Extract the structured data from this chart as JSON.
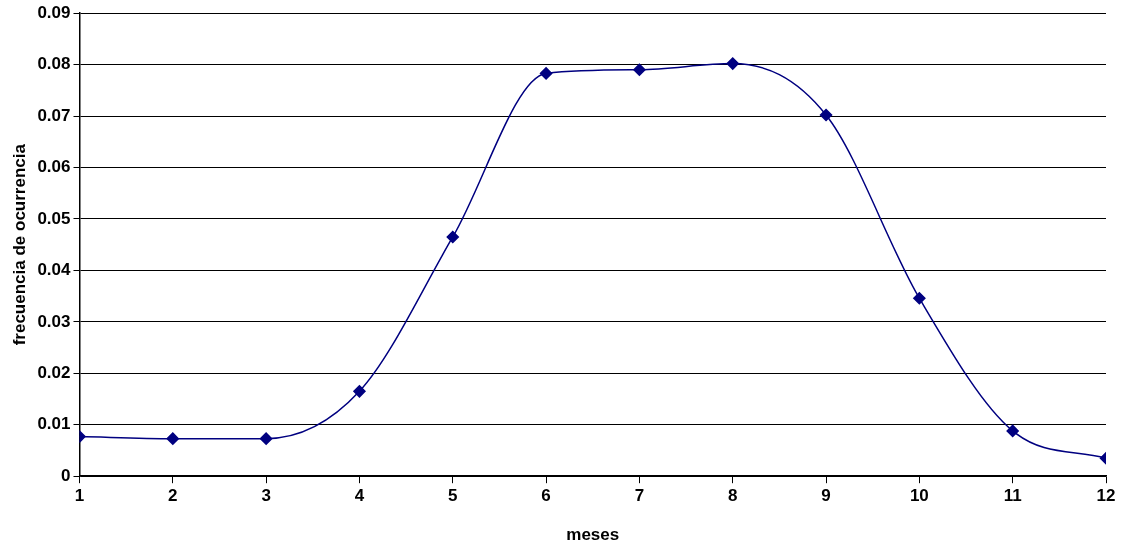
{
  "chart_data": {
    "type": "line",
    "xlabel": "meses",
    "ylabel": "frecuencia de ocurrencia",
    "x": [
      1,
      2,
      3,
      4,
      5,
      6,
      7,
      8,
      9,
      10,
      11,
      12
    ],
    "series": [
      {
        "color": "#000080",
        "values": [
          0.0077,
          0.0073,
          0.0073,
          0.0165,
          0.0465,
          0.0783,
          0.079,
          0.0802,
          0.0702,
          0.0346,
          0.0088,
          0.0035
        ]
      }
    ],
    "xlim": [
      1,
      12
    ],
    "xticks": [
      1,
      2,
      3,
      4,
      5,
      6,
      7,
      8,
      9,
      10,
      11,
      12
    ],
    "ylim": [
      0,
      0.09
    ],
    "yticks": [
      0,
      0.01,
      0.02,
      0.03,
      0.04,
      0.05,
      0.06,
      0.07,
      0.08,
      0.09
    ],
    "grid": "y",
    "legend": false,
    "marker": "diamond",
    "line_style": "solid"
  }
}
